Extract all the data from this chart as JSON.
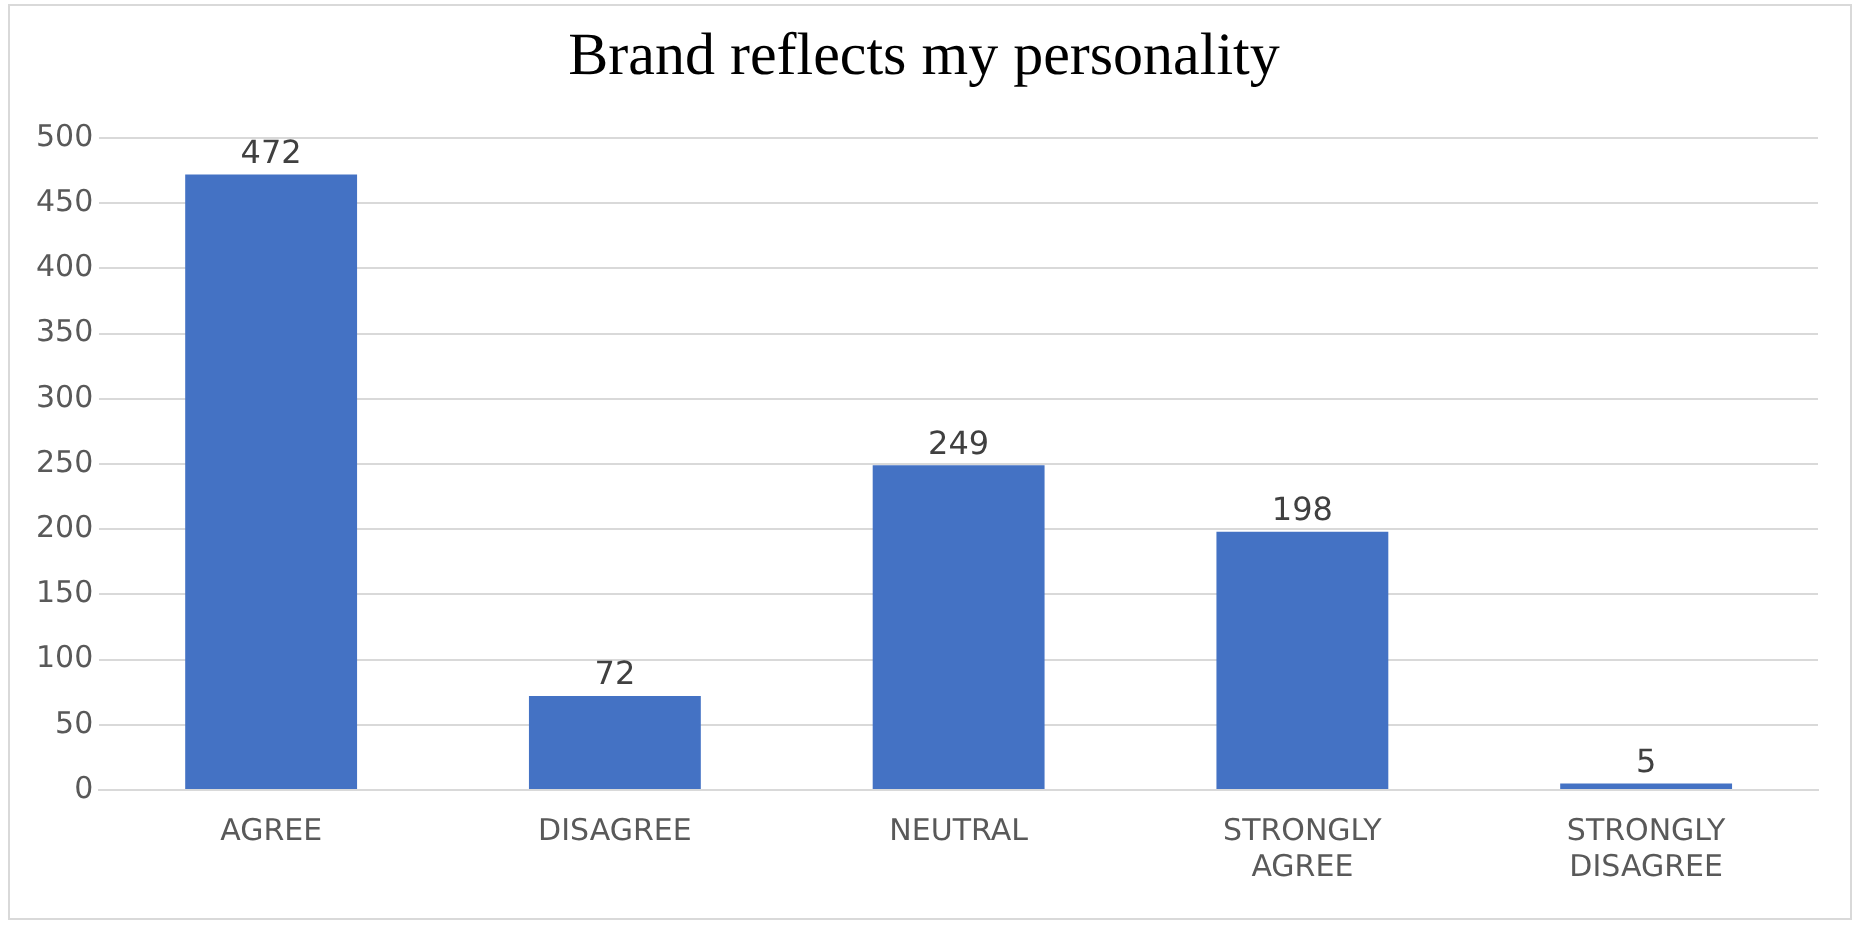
{
  "chart_data": {
    "type": "bar",
    "title": "Brand reflects my personality",
    "categories": [
      "AGREE",
      "DISAGREE",
      "NEUTRAL",
      "STRONGLY AGREE",
      "STRONGLY DISAGREE"
    ],
    "values": [
      472,
      72,
      249,
      198,
      5
    ],
    "color": "#4472c4",
    "ylim": [
      0,
      500
    ],
    "yticks": [
      0,
      50,
      100,
      150,
      200,
      250,
      300,
      350,
      400,
      450,
      500
    ],
    "grid": "y",
    "data_labels": true
  }
}
